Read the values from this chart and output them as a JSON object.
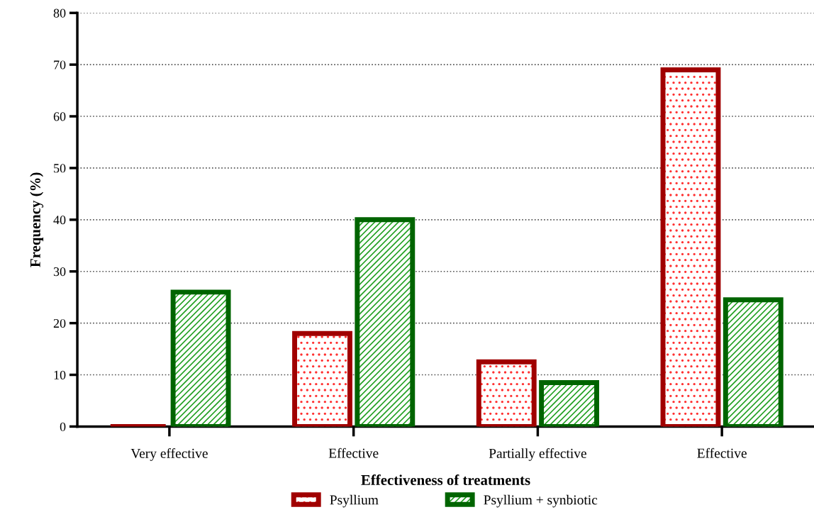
{
  "chart_data": {
    "type": "bar",
    "xlabel": "Effectiveness of treatments",
    "ylabel": "Frequency (%)",
    "categories": [
      "Very effective",
      "Effective",
      "Partially effective",
      "Effective"
    ],
    "series": [
      {
        "name": "Psyllium",
        "color": "#a00000",
        "values": [
          0,
          18,
          12.5,
          69
        ]
      },
      {
        "name": "Psyllium + synbiotic",
        "color": "#006400",
        "values": [
          26,
          40,
          8.5,
          24.5
        ]
      }
    ],
    "ylim": [
      0,
      80
    ],
    "yticks": [
      0,
      10,
      20,
      30,
      40,
      50,
      60,
      70,
      80
    ],
    "grid": "y",
    "legend": "bottom"
  }
}
